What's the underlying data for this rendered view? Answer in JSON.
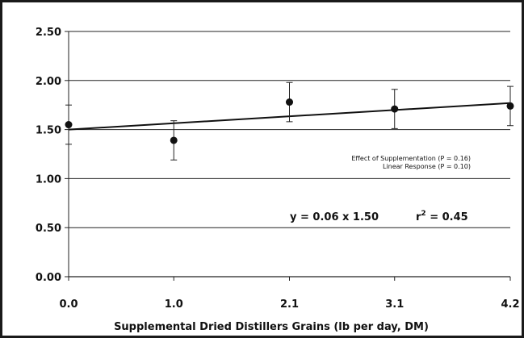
{
  "chart_data": {
    "type": "scatter",
    "title": "",
    "xlabel": "Supplemental Dried Distillers Grains (lb per day, DM)",
    "ylabel": "",
    "x_ticks": [
      "0.0",
      "1.0",
      "2.1",
      "3.1",
      "4.2"
    ],
    "y_ticks": [
      "0.00",
      "0.50",
      "1.00",
      "1.50",
      "2.00",
      "2.50"
    ],
    "xlim": [
      0,
      4.2
    ],
    "ylim": [
      0,
      2.5
    ],
    "grid": "horizontal",
    "series": [
      {
        "points": [
          {
            "x": 0.0,
            "y": 1.55,
            "err": 0.2
          },
          {
            "x": 1.0,
            "y": 1.39,
            "err": 0.2
          },
          {
            "x": 2.1,
            "y": 1.78,
            "err": 0.2
          },
          {
            "x": 3.1,
            "y": 1.71,
            "err": 0.2
          },
          {
            "x": 4.2,
            "y": 1.74,
            "err": 0.2
          }
        ]
      }
    ],
    "trendline": {
      "x": [
        0.0,
        4.2
      ],
      "y": [
        1.5,
        1.77
      ]
    },
    "annotations": {
      "note_line1": "Effect of Supplementation (P = 0.16)",
      "note_line2": "Linear Response (P = 0.10)",
      "equation": "y = 0.06 x 1.50",
      "r2_label": "r",
      "r2_exp": "2",
      "r2_value": " = 0.45"
    }
  }
}
